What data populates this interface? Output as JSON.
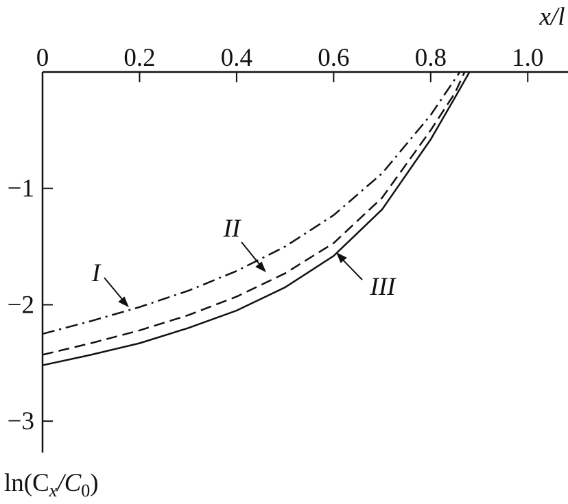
{
  "chart_data": {
    "type": "line",
    "x_label": "x/l",
    "y_label": [
      "ln(C",
      "x",
      "/C",
      "0",
      ")"
    ],
    "xlim": [
      0,
      1.083
    ],
    "ylim": [
      -3.27,
      0
    ],
    "xticks": [
      0,
      0.2,
      0.4,
      0.6,
      0.8,
      {
        "value": 1,
        "label": "1.0"
      }
    ],
    "yticks": [
      {
        "value": -1,
        "label": "−1"
      },
      {
        "value": -2,
        "label": "−2"
      },
      {
        "value": -3,
        "label": "−3"
      }
    ],
    "series": [
      {
        "name": "I",
        "color": "#111111",
        "dash": "dash-dot",
        "x": [
          0,
          0.1,
          0.2,
          0.3,
          0.4,
          0.5,
          0.6,
          0.7,
          0.8,
          0.86
        ],
        "values": [
          -2.25,
          -2.14,
          -2.02,
          -1.88,
          -1.71,
          -1.5,
          -1.23,
          -0.87,
          -0.37,
          0
        ]
      },
      {
        "name": "II",
        "color": "#111111",
        "dash": "dashed",
        "x": [
          0,
          0.1,
          0.2,
          0.3,
          0.4,
          0.5,
          0.6,
          0.7,
          0.8,
          0.85,
          0.87
        ],
        "values": [
          -2.43,
          -2.33,
          -2.22,
          -2.09,
          -1.93,
          -1.73,
          -1.47,
          -1.08,
          -0.5,
          -0.18,
          0
        ]
      },
      {
        "name": "III",
        "color": "#111111",
        "dash": "solid",
        "x": [
          0,
          0.1,
          0.2,
          0.3,
          0.4,
          0.5,
          0.6,
          0.7,
          0.8,
          0.85,
          0.88
        ],
        "values": [
          -2.52,
          -2.43,
          -2.33,
          -2.2,
          -2.05,
          -1.85,
          -1.58,
          -1.18,
          -0.58,
          -0.22,
          0
        ]
      }
    ]
  }
}
